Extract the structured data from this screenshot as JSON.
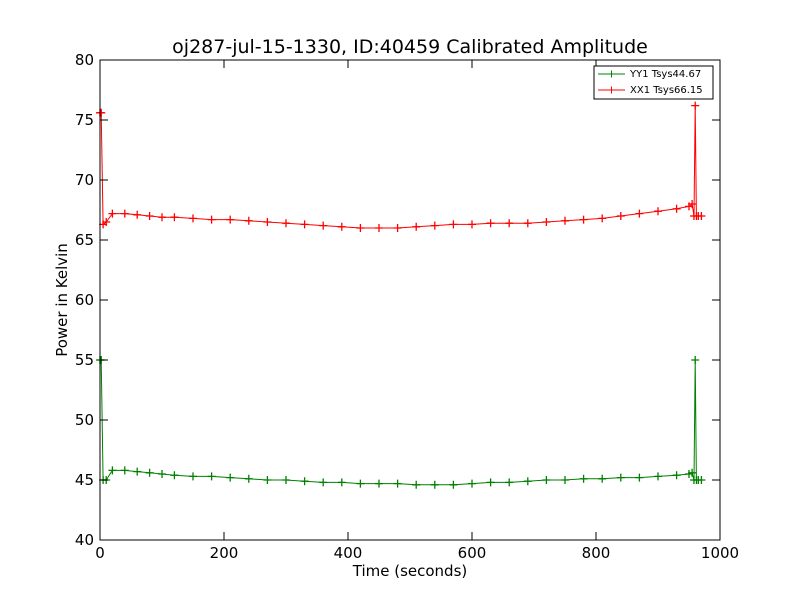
{
  "chart_data": {
    "type": "line",
    "title": "oj287-jul-15-1330, ID:40459 Calibrated Amplitude",
    "xlabel": "Time (seconds)",
    "ylabel": "Power in Kelvin",
    "xlim": [
      0,
      1000
    ],
    "ylim": [
      40,
      80
    ],
    "xticks": [
      0,
      200,
      400,
      600,
      800,
      1000
    ],
    "yticks": [
      40,
      45,
      50,
      55,
      60,
      65,
      70,
      75,
      80
    ],
    "grid": false,
    "legend_position": "top-right",
    "marker": "plus",
    "series": [
      {
        "name": "YY1 Tsys44.67",
        "color": "#008000",
        "x": [
          0,
          2,
          5,
          10,
          20,
          40,
          60,
          80,
          100,
          120,
          150,
          180,
          210,
          240,
          270,
          300,
          330,
          360,
          390,
          420,
          450,
          480,
          510,
          540,
          570,
          600,
          630,
          660,
          690,
          720,
          750,
          780,
          810,
          840,
          870,
          900,
          930,
          950,
          955,
          958,
          960,
          962,
          965,
          970
        ],
        "values": [
          55,
          55,
          45,
          45,
          45.8,
          45.8,
          45.7,
          45.6,
          45.5,
          45.4,
          45.3,
          45.3,
          45.2,
          45.1,
          45.0,
          45.0,
          44.9,
          44.8,
          44.8,
          44.7,
          44.7,
          44.7,
          44.6,
          44.6,
          44.6,
          44.7,
          44.8,
          44.8,
          44.9,
          45.0,
          45.0,
          45.1,
          45.1,
          45.2,
          45.2,
          45.3,
          45.4,
          45.5,
          45.6,
          45.0,
          55,
          45.0,
          45.0,
          45.0
        ]
      },
      {
        "name": "XX1 Tsys66.15",
        "color": "#ff0000",
        "x": [
          0,
          2,
          5,
          10,
          20,
          40,
          60,
          80,
          100,
          120,
          150,
          180,
          210,
          240,
          270,
          300,
          330,
          360,
          390,
          420,
          450,
          480,
          510,
          540,
          570,
          600,
          630,
          660,
          690,
          720,
          750,
          780,
          810,
          840,
          870,
          900,
          930,
          950,
          955,
          958,
          960,
          962,
          965,
          970
        ],
        "values": [
          75.6,
          75.6,
          66.3,
          66.5,
          67.2,
          67.2,
          67.1,
          67.0,
          66.9,
          66.9,
          66.8,
          66.7,
          66.7,
          66.6,
          66.5,
          66.4,
          66.3,
          66.2,
          66.1,
          66.0,
          66.0,
          66.0,
          66.1,
          66.2,
          66.3,
          66.3,
          66.4,
          66.4,
          66.4,
          66.5,
          66.6,
          66.7,
          66.8,
          67.0,
          67.2,
          67.4,
          67.6,
          67.8,
          68.0,
          67.0,
          76.2,
          67.0,
          67.0,
          67.0
        ]
      }
    ]
  }
}
